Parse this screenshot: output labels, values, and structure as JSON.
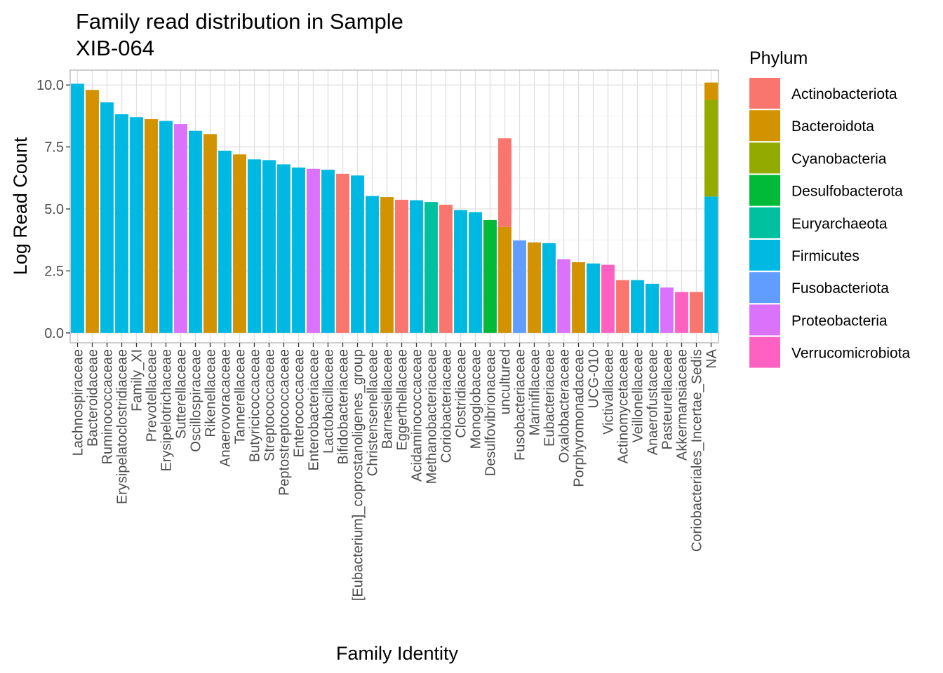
{
  "chart_data": {
    "type": "bar",
    "stacked": true,
    "title": "Family read distribution in Sample\nXIB-064",
    "xlabel": "Family Identity",
    "ylabel": "Log Read Count",
    "ylim": [
      -0.4,
      10.6
    ],
    "yticks": [
      0.0,
      2.5,
      5.0,
      7.5,
      10.0
    ],
    "ytick_labels": [
      "0.0",
      "2.5",
      "5.0",
      "7.5",
      "10.0"
    ],
    "grid": true,
    "legend": {
      "title": "Phylum",
      "position": "right",
      "items": [
        {
          "name": "Actinobacteriota",
          "color": "#F8766D"
        },
        {
          "name": "Bacteroidota",
          "color": "#D39200"
        },
        {
          "name": "Cyanobacteria",
          "color": "#93AA00"
        },
        {
          "name": "Desulfobacterota",
          "color": "#00BA38"
        },
        {
          "name": "Euryarchaeota",
          "color": "#00C19F"
        },
        {
          "name": "Firmicutes",
          "color": "#00B9E3"
        },
        {
          "name": "Fusobacteriota",
          "color": "#619CFF"
        },
        {
          "name": "Proteobacteria",
          "color": "#DB72FB"
        },
        {
          "name": "Verrucomicrobiota",
          "color": "#FF61C3"
        }
      ]
    },
    "categories": [
      "Lachnospiraceae",
      "Bacteroidaceae",
      "Ruminococcaceae",
      "Erysipelatoclostridiaceae",
      "Family_XI",
      "Prevotellaceae",
      "Erysipelotrichaceae",
      "Sutterellaceae",
      "Oscillospiraceae",
      "Rikenellaceae",
      "Anaerovoracaceae",
      "Tannerellaceae",
      "Butyricicoccaceae",
      "Streptococcaceae",
      "Peptostreptococcaceae",
      "Enterococcaceae",
      "Enterobacteriaceae",
      "Lactobacillaceae",
      "Bifidobacteriaceae",
      "[Eubacterium]_coprostanoligenes_group",
      "Christensenellaceae",
      "Barnesiellaceae",
      "Eggerthellaceae",
      "Acidaminococcaceae",
      "Methanobacteriaceae",
      "Coriobacteriaceae",
      "Clostridiaceae",
      "Monoglobaceae",
      "Desulfovibrionaceae",
      "uncultured",
      "Fusobacteriaceae",
      "Marinifilaceae",
      "Eubacteriaceae",
      "Oxalobacteraceae",
      "Porphyromonadaceae",
      "UCG-010",
      "Victivallaceae",
      "Actinomycetaceae",
      "Veillonellaceae",
      "Anaerofustaceae",
      "Pasteurellaceae",
      "Akkermansiaceae",
      "Coriobacteriales_Incertae_Sedis",
      "NA"
    ],
    "bars": [
      {
        "segments": [
          {
            "phylum": "Firmicutes",
            "value": 10.05
          }
        ]
      },
      {
        "segments": [
          {
            "phylum": "Bacteroidota",
            "value": 9.8
          }
        ]
      },
      {
        "segments": [
          {
            "phylum": "Firmicutes",
            "value": 9.3
          }
        ]
      },
      {
        "segments": [
          {
            "phylum": "Firmicutes",
            "value": 8.82
          }
        ]
      },
      {
        "segments": [
          {
            "phylum": "Firmicutes",
            "value": 8.7
          }
        ]
      },
      {
        "segments": [
          {
            "phylum": "Bacteroidota",
            "value": 8.62
          }
        ]
      },
      {
        "segments": [
          {
            "phylum": "Firmicutes",
            "value": 8.55
          }
        ]
      },
      {
        "segments": [
          {
            "phylum": "Proteobacteria",
            "value": 8.42
          }
        ]
      },
      {
        "segments": [
          {
            "phylum": "Firmicutes",
            "value": 8.15
          }
        ]
      },
      {
        "segments": [
          {
            "phylum": "Bacteroidota",
            "value": 8.02
          }
        ]
      },
      {
        "segments": [
          {
            "phylum": "Firmicutes",
            "value": 7.35
          }
        ]
      },
      {
        "segments": [
          {
            "phylum": "Bacteroidota",
            "value": 7.2
          }
        ]
      },
      {
        "segments": [
          {
            "phylum": "Firmicutes",
            "value": 7.0
          }
        ]
      },
      {
        "segments": [
          {
            "phylum": "Firmicutes",
            "value": 6.97
          }
        ]
      },
      {
        "segments": [
          {
            "phylum": "Firmicutes",
            "value": 6.8
          }
        ]
      },
      {
        "segments": [
          {
            "phylum": "Firmicutes",
            "value": 6.67
          }
        ]
      },
      {
        "segments": [
          {
            "phylum": "Proteobacteria",
            "value": 6.62
          }
        ]
      },
      {
        "segments": [
          {
            "phylum": "Firmicutes",
            "value": 6.58
          }
        ]
      },
      {
        "segments": [
          {
            "phylum": "Actinobacteriota",
            "value": 6.42
          }
        ]
      },
      {
        "segments": [
          {
            "phylum": "Firmicutes",
            "value": 6.35
          }
        ]
      },
      {
        "segments": [
          {
            "phylum": "Firmicutes",
            "value": 5.52
          }
        ]
      },
      {
        "segments": [
          {
            "phylum": "Bacteroidota",
            "value": 5.48
          }
        ]
      },
      {
        "segments": [
          {
            "phylum": "Actinobacteriota",
            "value": 5.37
          }
        ]
      },
      {
        "segments": [
          {
            "phylum": "Firmicutes",
            "value": 5.35
          }
        ]
      },
      {
        "segments": [
          {
            "phylum": "Euryarchaeota",
            "value": 5.28
          }
        ]
      },
      {
        "segments": [
          {
            "phylum": "Actinobacteriota",
            "value": 5.17
          }
        ]
      },
      {
        "segments": [
          {
            "phylum": "Firmicutes",
            "value": 4.95
          }
        ]
      },
      {
        "segments": [
          {
            "phylum": "Firmicutes",
            "value": 4.87
          }
        ]
      },
      {
        "segments": [
          {
            "phylum": "Desulfobacterota",
            "value": 4.55
          }
        ]
      },
      {
        "segments": [
          {
            "phylum": "Bacteroidota",
            "value": 4.27
          },
          {
            "phylum": "Actinobacteriota",
            "value": 3.58
          }
        ]
      },
      {
        "segments": [
          {
            "phylum": "Fusobacteriota",
            "value": 3.73
          }
        ]
      },
      {
        "segments": [
          {
            "phylum": "Bacteroidota",
            "value": 3.65
          }
        ]
      },
      {
        "segments": [
          {
            "phylum": "Firmicutes",
            "value": 3.62
          }
        ]
      },
      {
        "segments": [
          {
            "phylum": "Proteobacteria",
            "value": 2.97
          }
        ]
      },
      {
        "segments": [
          {
            "phylum": "Bacteroidota",
            "value": 2.85
          }
        ]
      },
      {
        "segments": [
          {
            "phylum": "Firmicutes",
            "value": 2.8
          }
        ]
      },
      {
        "segments": [
          {
            "phylum": "Verrucomicrobiota",
            "value": 2.75
          }
        ]
      },
      {
        "segments": [
          {
            "phylum": "Actinobacteriota",
            "value": 2.13
          }
        ]
      },
      {
        "segments": [
          {
            "phylum": "Firmicutes",
            "value": 2.13
          }
        ]
      },
      {
        "segments": [
          {
            "phylum": "Firmicutes",
            "value": 1.98
          }
        ]
      },
      {
        "segments": [
          {
            "phylum": "Proteobacteria",
            "value": 1.83
          }
        ]
      },
      {
        "segments": [
          {
            "phylum": "Verrucomicrobiota",
            "value": 1.65
          }
        ]
      },
      {
        "segments": [
          {
            "phylum": "Actinobacteriota",
            "value": 1.65
          }
        ]
      },
      {
        "segments": [
          {
            "phylum": "Firmicutes",
            "value": 5.5
          },
          {
            "phylum": "Cyanobacteria",
            "value": 3.9
          },
          {
            "phylum": "Bacteroidota",
            "value": 0.7
          }
        ]
      }
    ]
  }
}
